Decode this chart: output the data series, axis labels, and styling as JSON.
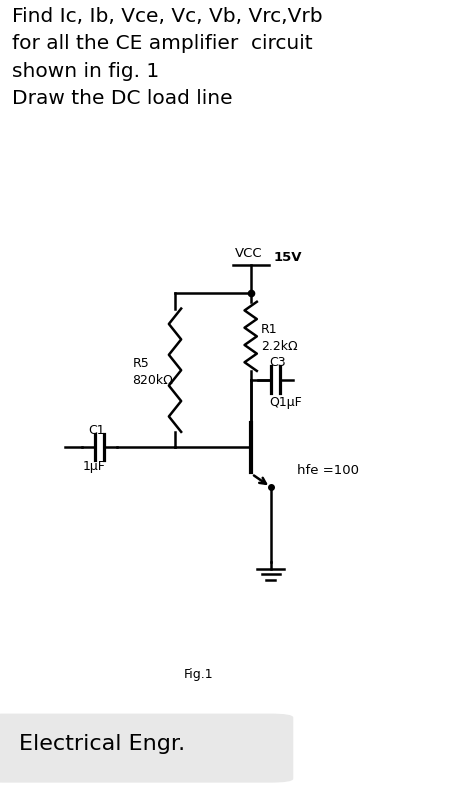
{
  "title_lines": [
    "Find Ic, Ib, Vce, Vc, Vb, Vrc,Vrb",
    "for all the CE amplifier  circuit",
    "shown in fig. 1",
    "Draw the DC load line"
  ],
  "title_fontsize": 14.5,
  "title_bg": "#ebebeb",
  "fig_label": "Fig.1",
  "footer_text": "Electrical Engr.",
  "footer_bg": "#e8e8e8",
  "bg_color": "#ffffff",
  "vcc_label": "VCC",
  "vcc_voltage": "15V",
  "r1_label": "R1",
  "r1_val": "2.2kΩ",
  "r5_label": "R5",
  "r5_val": "820kΩ",
  "c1_label": "C1",
  "c1_value": "1μF",
  "c3_label": "C3",
  "c3_value": "Q1μF",
  "hfe_label": "hfe =100"
}
